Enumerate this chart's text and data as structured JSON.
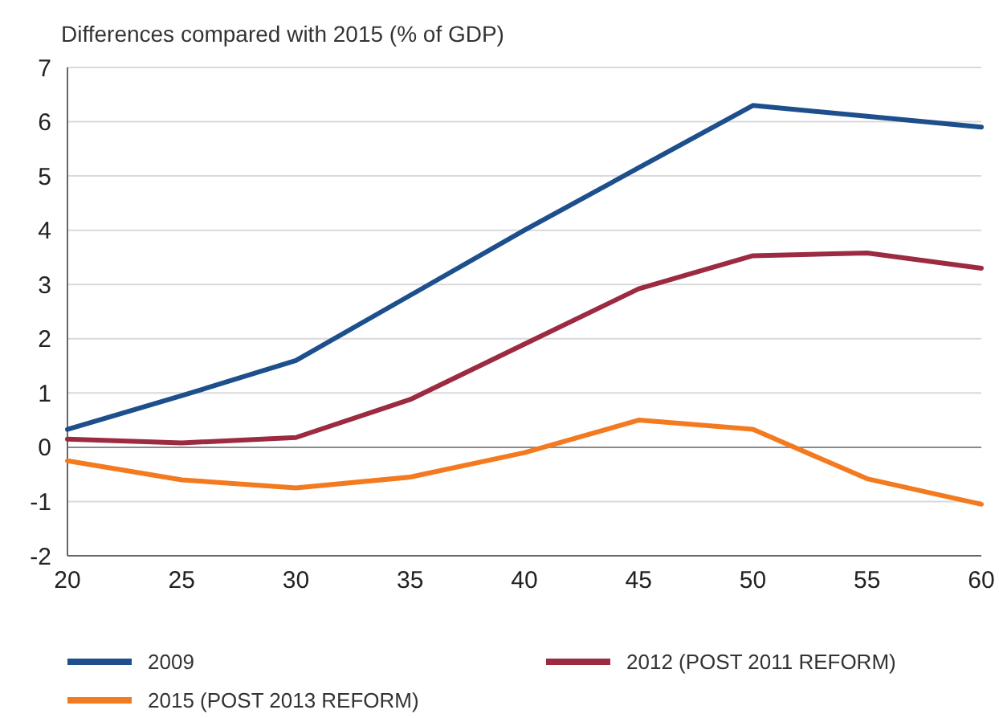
{
  "chart_data": {
    "type": "line",
    "ylabel": "Differences compared with 2015 (% of GDP)",
    "x": [
      20,
      25,
      30,
      35,
      40,
      45,
      50,
      55,
      60
    ],
    "series": [
      {
        "name": "2009",
        "color": "#1d4f8c",
        "values": [
          0.33,
          0.95,
          1.6,
          2.8,
          4.0,
          5.15,
          6.3,
          6.1,
          5.9
        ]
      },
      {
        "name": "2012 (POST 2011 REFORM)",
        "color": "#9c2a40",
        "values": [
          0.15,
          0.08,
          0.18,
          0.88,
          1.9,
          2.92,
          3.53,
          3.58,
          3.3
        ]
      },
      {
        "name": "2015 (POST 2013 REFORM)",
        "color": "#f47a20",
        "values": [
          -0.25,
          -0.6,
          -0.75,
          -0.55,
          -0.1,
          0.5,
          0.33,
          -0.58,
          -1.05
        ]
      }
    ],
    "xlim": [
      20,
      60
    ],
    "xticks": [
      20,
      25,
      30,
      35,
      40,
      45,
      50,
      55,
      60
    ],
    "ylim": [
      -2,
      7
    ],
    "yticks": [
      -2,
      -1,
      0,
      1,
      2,
      3,
      4,
      5,
      6,
      7
    ],
    "ref_lines": [
      {
        "axis": "y",
        "value": 0,
        "color": "#8a8a8a"
      }
    ],
    "grid": "y",
    "legend": "bottom",
    "marker": "none",
    "line_style": "solid"
  }
}
